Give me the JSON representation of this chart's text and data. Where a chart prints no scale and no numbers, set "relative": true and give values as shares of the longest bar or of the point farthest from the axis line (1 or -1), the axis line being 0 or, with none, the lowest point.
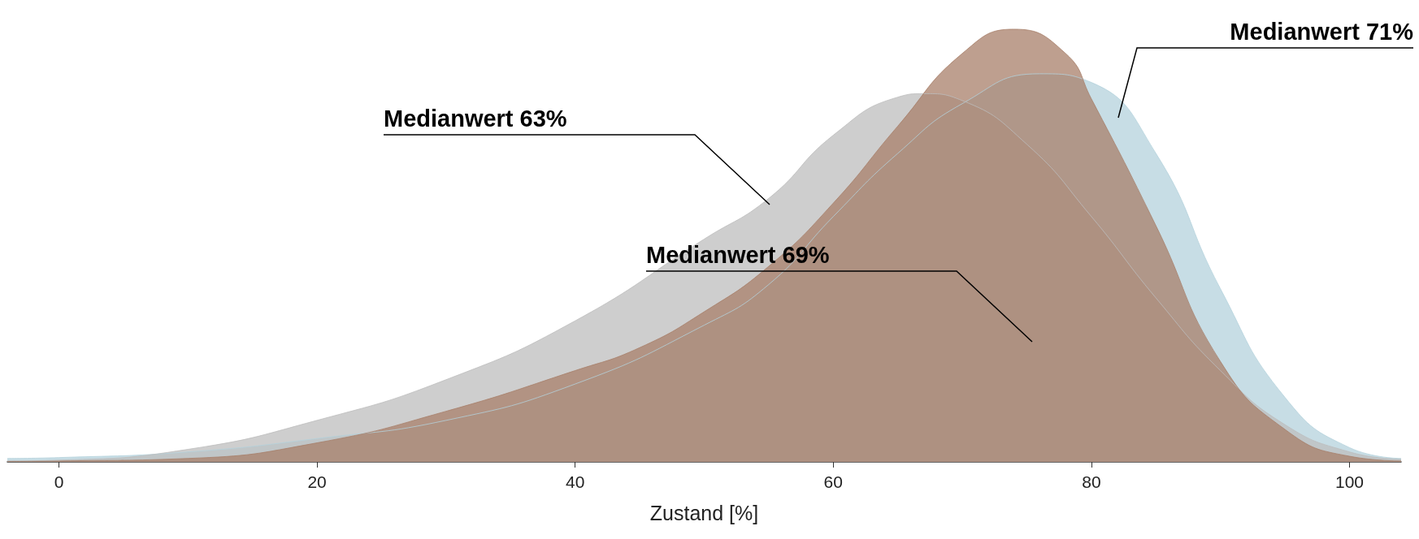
{
  "chart_data": {
    "type": "area",
    "relative": true,
    "xlabel": "Zustand [%]",
    "xlim": [
      -4,
      104
    ],
    "xticks": [
      0,
      20,
      40,
      60,
      80,
      100
    ],
    "series": [
      {
        "color": "#b4d2dc",
        "x": [
          -4,
          0,
          10,
          20,
          30,
          40,
          50,
          55,
          60,
          65,
          70,
          76,
          80,
          85,
          90,
          95,
          100,
          104
        ],
        "values": [
          0.008,
          0.01,
          0.023,
          0.054,
          0.096,
          0.18,
          0.316,
          0.41,
          0.567,
          0.713,
          0.828,
          0.897,
          0.877,
          0.713,
          0.4,
          0.149,
          0.033,
          0.008
        ]
      },
      {
        "color": "#bdbdbd",
        "x": [
          -4,
          0,
          10,
          20,
          30,
          40,
          50,
          55,
          60,
          65,
          67,
          70,
          75,
          80,
          85,
          90,
          95,
          100,
          104
        ],
        "values": [
          0.002,
          0.004,
          0.029,
          0.096,
          0.19,
          0.326,
          0.515,
          0.609,
          0.755,
          0.843,
          0.851,
          0.835,
          0.734,
          0.567,
          0.379,
          0.211,
          0.086,
          0.023,
          0.006
        ]
      },
      {
        "color": "#a87f6a",
        "x": [
          -4,
          0,
          10,
          20,
          30,
          40,
          45,
          50,
          55,
          60,
          65,
          70,
          74,
          78,
          80,
          85,
          90,
          95,
          100,
          104
        ],
        "values": [
          0.001,
          0.002,
          0.008,
          0.044,
          0.117,
          0.211,
          0.264,
          0.347,
          0.452,
          0.598,
          0.776,
          0.944,
          1,
          0.944,
          0.839,
          0.546,
          0.232,
          0.075,
          0.013,
          0.002
        ]
      }
    ],
    "annotations": [
      "Medianwert 63%",
      "Medianwert 69%",
      "Medianwert 71%"
    ]
  }
}
